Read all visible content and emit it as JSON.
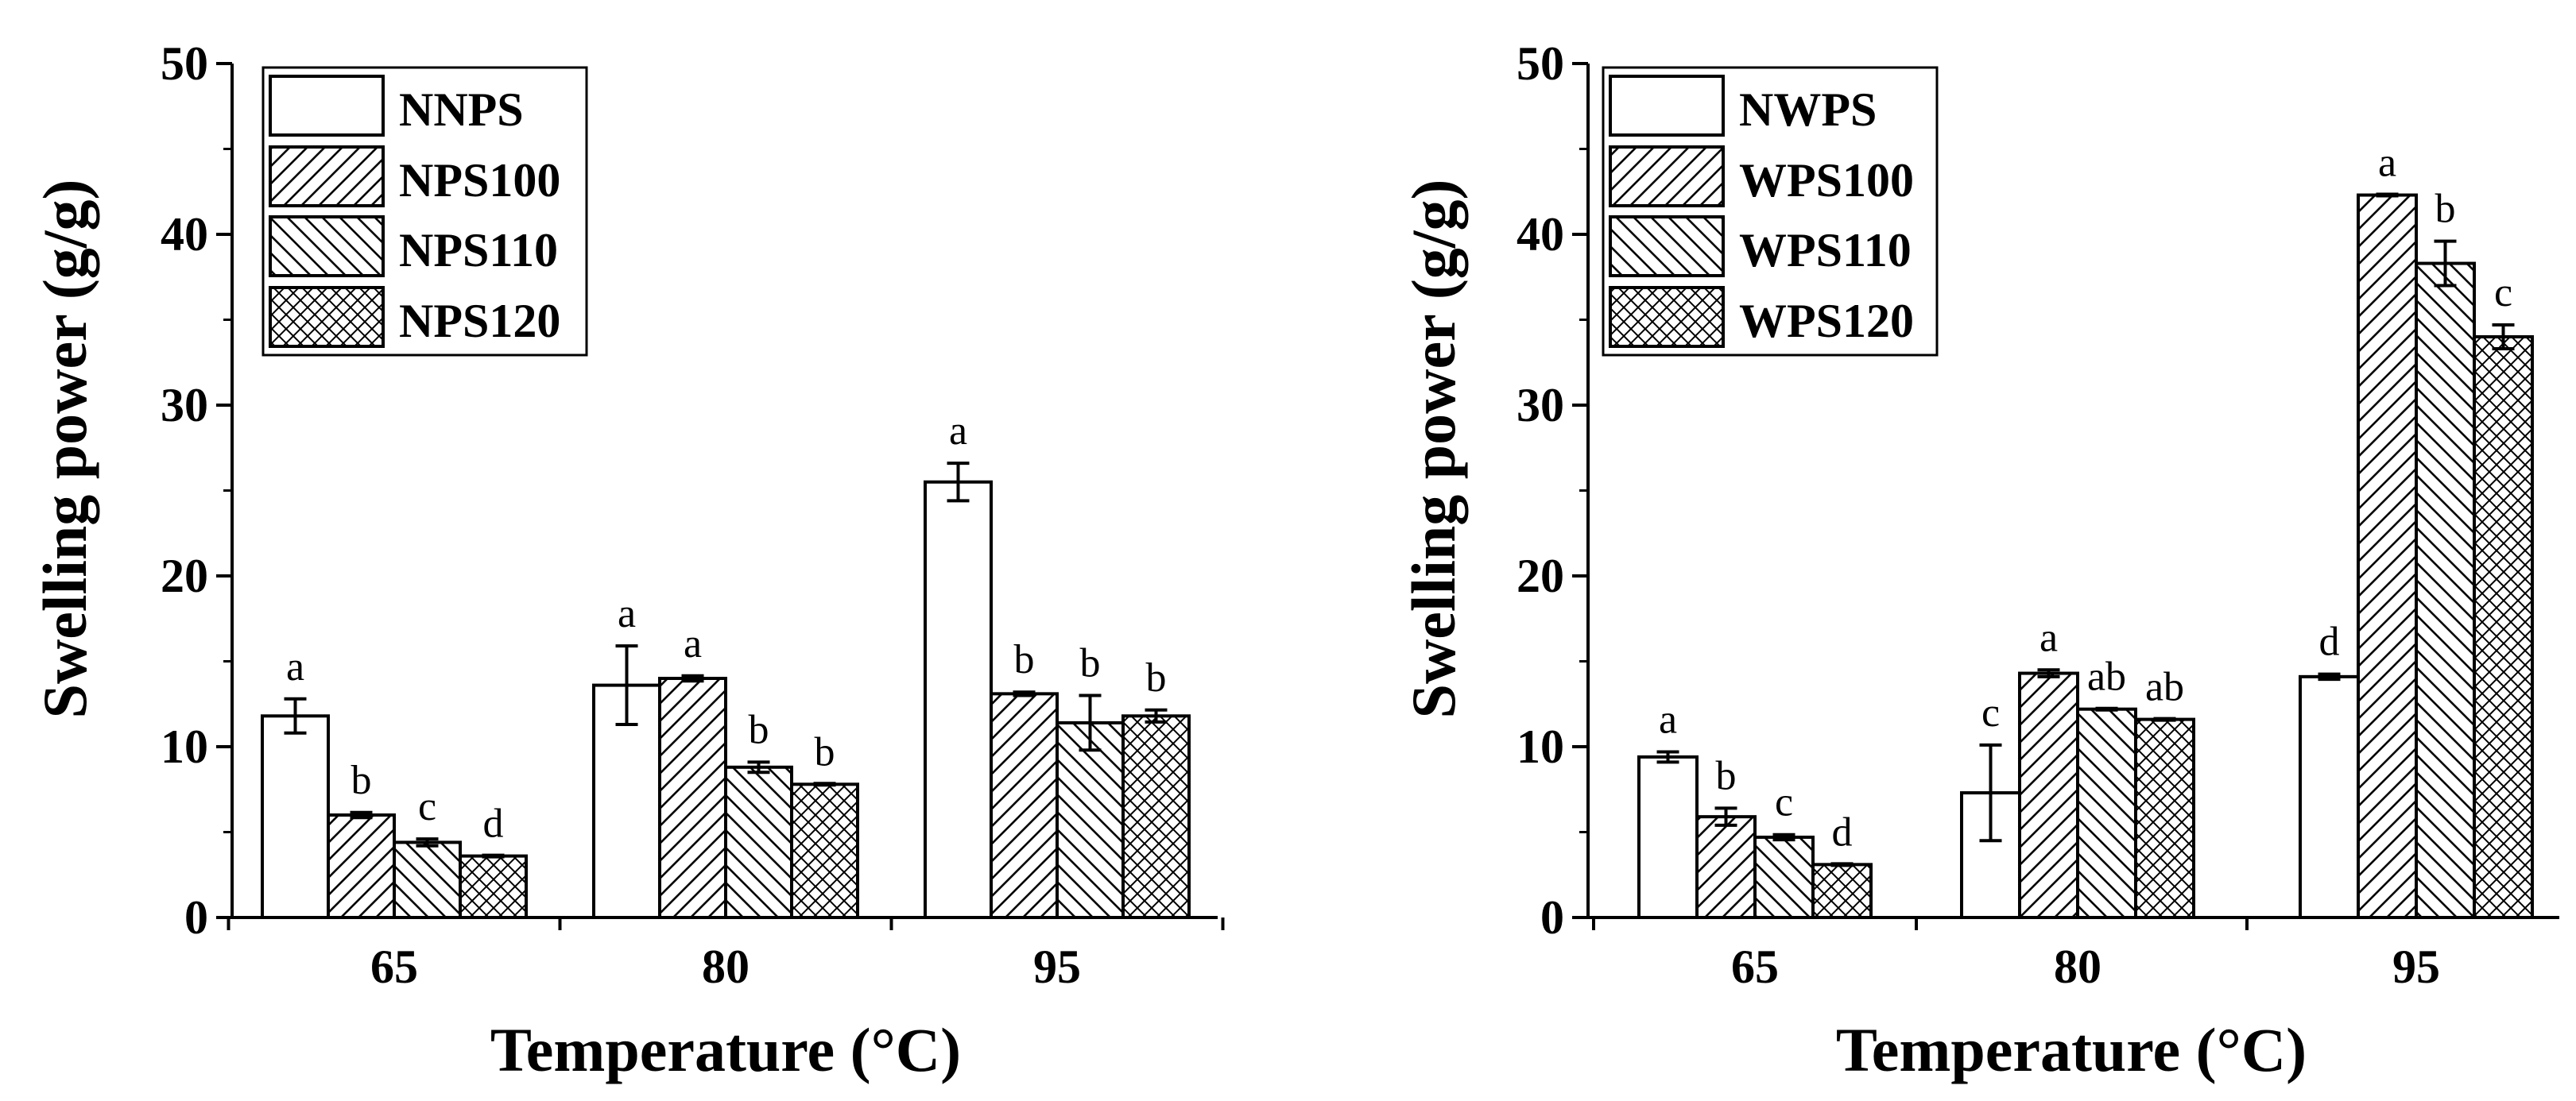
{
  "chart_data": [
    {
      "type": "bar",
      "title": "",
      "xlabel": "Temperature (°C)",
      "ylabel": "Swelling power (g/g)",
      "ylim": [
        0,
        50
      ],
      "yticks": [
        0,
        10,
        20,
        30,
        40,
        50
      ],
      "categories": [
        "65",
        "80",
        "95"
      ],
      "legend_position": "top-left",
      "series": [
        {
          "name": "NNPS",
          "pattern": "none",
          "values": [
            11.8,
            13.6,
            25.5
          ],
          "errors": [
            1.0,
            2.3,
            1.1
          ],
          "letters": [
            "a",
            "a",
            "a"
          ]
        },
        {
          "name": "NPS100",
          "pattern": "fdiag",
          "values": [
            6.0,
            14.0,
            13.1
          ],
          "errors": [
            0.15,
            0.15,
            0.1
          ],
          "letters": [
            "b",
            "a",
            "b"
          ]
        },
        {
          "name": "NPS110",
          "pattern": "bdiag",
          "values": [
            4.4,
            8.8,
            11.4
          ],
          "errors": [
            0.2,
            0.3,
            1.6
          ],
          "letters": [
            "c",
            "b",
            "b"
          ]
        },
        {
          "name": "NPS120",
          "pattern": "cross",
          "values": [
            3.6,
            7.8,
            11.8
          ],
          "errors": [
            0,
            0,
            0.35
          ],
          "letters": [
            "d",
            "b",
            "b"
          ]
        }
      ]
    },
    {
      "type": "bar",
      "title": "",
      "xlabel": "Temperature (°C)",
      "ylabel": "Swelling power (g/g)",
      "ylim": [
        0,
        50
      ],
      "yticks": [
        0,
        10,
        20,
        30,
        40,
        50
      ],
      "categories": [
        "65",
        "80",
        "95"
      ],
      "legend_position": "top-left",
      "series": [
        {
          "name": "NWPS",
          "pattern": "none",
          "values": [
            9.4,
            7.3,
            14.1
          ],
          "errors": [
            0.3,
            2.8,
            0.15
          ],
          "letters": [
            "a",
            "c",
            "d"
          ]
        },
        {
          "name": "WPS100",
          "pattern": "fdiag",
          "values": [
            5.9,
            14.3,
            42.3
          ],
          "errors": [
            0.5,
            0.2,
            0
          ],
          "letters": [
            "b",
            "a",
            "a"
          ]
        },
        {
          "name": "WPS110",
          "pattern": "bdiag",
          "values": [
            4.7,
            12.2,
            38.3
          ],
          "errors": [
            0.15,
            0,
            1.3
          ],
          "letters": [
            "c",
            "ab",
            "b"
          ]
        },
        {
          "name": "WPS120",
          "pattern": "cross",
          "values": [
            3.1,
            11.6,
            34.0
          ],
          "errors": [
            0,
            0,
            0.7
          ],
          "letters": [
            "d",
            "ab",
            "c"
          ]
        }
      ]
    }
  ]
}
